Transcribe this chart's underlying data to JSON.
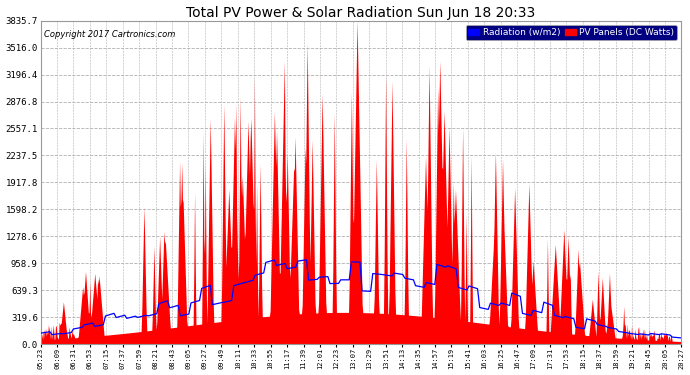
{
  "title": "Total PV Power & Solar Radiation Sun Jun 18 20:33",
  "copyright": "Copyright 2017 Cartronics.com",
  "background_color": "#ffffff",
  "plot_bg_color": "#ffffff",
  "grid_color": "#b0b0b0",
  "y_ticks": [
    0.0,
    319.6,
    639.3,
    958.9,
    1278.6,
    1598.2,
    1917.8,
    2237.5,
    2557.1,
    2876.8,
    3196.4,
    3516.0,
    3835.7
  ],
  "y_max": 3835.7,
  "legend_labels": [
    "Radiation (w/m2)",
    "PV Panels (DC Watts)"
  ],
  "legend_bg": "#000080",
  "red_fill_color": "#ff0000",
  "blue_line_color": "#0000ff",
  "x_tick_labels": [
    "05:23",
    "06:09",
    "06:31",
    "06:53",
    "07:15",
    "07:37",
    "07:59",
    "08:21",
    "08:43",
    "09:05",
    "09:27",
    "09:49",
    "10:11",
    "10:33",
    "10:55",
    "11:17",
    "11:39",
    "12:01",
    "12:23",
    "13:07",
    "13:29",
    "13:51",
    "14:13",
    "14:35",
    "14:57",
    "15:19",
    "15:41",
    "16:03",
    "16:25",
    "16:47",
    "17:09",
    "17:31",
    "17:53",
    "18:15",
    "18:37",
    "18:59",
    "19:21",
    "19:45",
    "20:05",
    "20:27"
  ]
}
